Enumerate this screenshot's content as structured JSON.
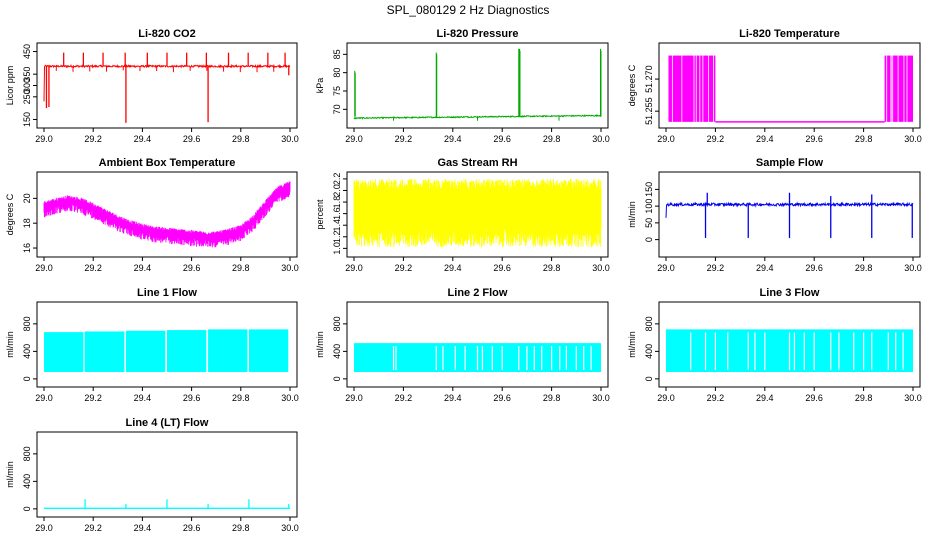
{
  "main_title": "SPL_080129  2 Hz Diagnostics",
  "chart_data": [
    {
      "type": "line",
      "title": "Li-820 CO2",
      "ylabel": "Licor ppm",
      "color": "#ff0000",
      "xlim": [
        29.0,
        30.0
      ],
      "ylim": [
        130,
        470
      ],
      "xticks": [
        29.0,
        29.2,
        29.4,
        29.6,
        29.8,
        30.0
      ],
      "xtick_labels": [
        "29.0",
        "29.2",
        "29.4",
        "29.6",
        "29.8",
        "30.0"
      ],
      "yticks": [
        150,
        250,
        300,
        350,
        450
      ],
      "ytick_labels": [
        "150",
        "250",
        "300",
        "350",
        "450"
      ],
      "series": {
        "baseline": 385,
        "noise": 4,
        "start_value": 230,
        "spikes": [
          {
            "x": 29.01,
            "y": 200
          },
          {
            "x": 29.02,
            "y": 205
          },
          {
            "x": 29.08,
            "y": 445
          },
          {
            "x": 29.16,
            "y": 445
          },
          {
            "x": 29.24,
            "y": 445
          },
          {
            "x": 29.33,
            "y": 445
          },
          {
            "x": 29.333,
            "y": 135
          },
          {
            "x": 29.42,
            "y": 445
          },
          {
            "x": 29.5,
            "y": 445
          },
          {
            "x": 29.58,
            "y": 445
          },
          {
            "x": 29.66,
            "y": 445
          },
          {
            "x": 29.667,
            "y": 138
          },
          {
            "x": 29.75,
            "y": 445
          },
          {
            "x": 29.83,
            "y": 445
          },
          {
            "x": 29.91,
            "y": 445
          },
          {
            "x": 29.98,
            "y": 445
          },
          {
            "x": 29.995,
            "y": 345
          }
        ]
      }
    },
    {
      "type": "line",
      "title": "Li-820 Pressure",
      "ylabel": "kPa",
      "color": "#00aa00",
      "xlim": [
        29.0,
        30.0
      ],
      "ylim": [
        66,
        87
      ],
      "xticks": [
        29.0,
        29.2,
        29.4,
        29.6,
        29.8,
        30.0
      ],
      "xtick_labels": [
        "29.0",
        "29.2",
        "29.4",
        "29.6",
        "29.8",
        "30.0"
      ],
      "yticks": [
        70,
        75,
        80,
        85
      ],
      "ytick_labels": [
        "70",
        "75",
        "80",
        "85"
      ],
      "series": {
        "baseline_start": 67.6,
        "baseline_end": 68.3,
        "noise": 0.15,
        "spikes": [
          {
            "x": 29.003,
            "y": 80.5
          },
          {
            "x": 29.333,
            "y": 85.5
          },
          {
            "x": 29.667,
            "y": 86.5
          },
          {
            "x": 29.67,
            "y": 86.5
          },
          {
            "x": 29.998,
            "y": 86.5
          }
        ]
      }
    },
    {
      "type": "line",
      "title": "Li-820 Temperature",
      "ylabel": "degrees C",
      "color": "#ff00ff",
      "xlim": [
        29.0,
        30.0
      ],
      "ylim": [
        51.249,
        51.285
      ],
      "xticks": [
        29.0,
        29.2,
        29.4,
        29.6,
        29.8,
        30.0
      ],
      "xtick_labels": [
        "29.0",
        "29.2",
        "29.4",
        "29.6",
        "29.8",
        "30.0"
      ],
      "yticks": [
        51.255,
        51.27
      ],
      "ytick_labels": [
        "51.255",
        "51.270"
      ],
      "series": {
        "low": 51.25,
        "high": 51.281,
        "oscillating_ranges": [
          [
            29.01,
            29.2
          ],
          [
            29.885,
            30.0
          ]
        ]
      }
    },
    {
      "type": "line",
      "title": "Ambient Box Temperature",
      "ylabel": "degrees C",
      "color": "#ff00ff",
      "xlim": [
        29.0,
        30.0
      ],
      "ylim": [
        15.6,
        21.8
      ],
      "xticks": [
        29.0,
        29.2,
        29.4,
        29.6,
        29.8,
        30.0
      ],
      "xtick_labels": [
        "29.0",
        "29.2",
        "29.4",
        "29.6",
        "29.8",
        "30.0"
      ],
      "yticks": [
        16,
        18,
        20
      ],
      "ytick_labels": [
        "16",
        "18",
        "20"
      ],
      "series": {
        "profile_x": [
          29.0,
          29.05,
          29.1,
          29.15,
          29.2,
          29.25,
          29.3,
          29.35,
          29.4,
          29.45,
          29.5,
          29.55,
          29.6,
          29.65,
          29.7,
          29.75,
          29.8,
          29.85,
          29.9,
          29.95,
          30.0
        ],
        "profile_y": [
          19.4,
          19.7,
          19.9,
          19.7,
          19.3,
          18.8,
          18.3,
          17.9,
          17.6,
          17.4,
          17.3,
          17.2,
          17.1,
          17.0,
          17.0,
          17.2,
          17.5,
          18.3,
          19.5,
          20.6,
          21.1
        ],
        "band_width": 1.2
      }
    },
    {
      "type": "line",
      "title": "Gas Stream RH",
      "ylabel": "percent",
      "color": "#ffff00",
      "xlim": [
        29.0,
        30.0
      ],
      "ylim": [
        0.92,
        2.25
      ],
      "xticks": [
        29.0,
        29.2,
        29.4,
        29.6,
        29.8,
        30.0
      ],
      "xtick_labels": [
        "29.0",
        "29.2",
        "29.4",
        "29.6",
        "29.8",
        "30.0"
      ],
      "yticks": [
        1.0,
        1.2,
        1.4,
        1.6,
        1.8,
        2.0,
        2.2
      ],
      "ytick_labels": [
        "1.0",
        "1.2",
        "1.4",
        "1.6",
        "1.8",
        "2.0",
        "2.2"
      ],
      "series": {
        "low": 1.02,
        "high": 2.2,
        "noise_floor": 1.35
      }
    },
    {
      "type": "line",
      "title": "Sample Flow",
      "ylabel": "ml/min",
      "color": "#0000ee",
      "xlim": [
        29.0,
        30.0
      ],
      "ylim": [
        -40,
        190
      ],
      "xticks": [
        29.0,
        29.2,
        29.4,
        29.6,
        29.8,
        30.0
      ],
      "xtick_labels": [
        "29.0",
        "29.2",
        "29.4",
        "29.6",
        "29.8",
        "30.0"
      ],
      "yticks": [
        0,
        50,
        100,
        150
      ],
      "ytick_labels": [
        "0",
        "50",
        "100",
        "150"
      ],
      "series": {
        "baseline": 105,
        "noise": 4,
        "start_value": 65,
        "spikes": [
          {
            "x": 29.16,
            "y": 5
          },
          {
            "x": 29.167,
            "y": 140
          },
          {
            "x": 29.333,
            "y": 5
          },
          {
            "x": 29.5,
            "y": 5
          },
          {
            "x": 29.5,
            "y": 140
          },
          {
            "x": 29.667,
            "y": 5
          },
          {
            "x": 29.667,
            "y": 130
          },
          {
            "x": 29.833,
            "y": 5
          },
          {
            "x": 29.833,
            "y": 135
          },
          {
            "x": 29.997,
            "y": 5
          }
        ]
      }
    },
    {
      "type": "area",
      "title": "Line 1 Flow",
      "ylabel": "ml/min",
      "color": "#00ffff",
      "xlim": [
        29.0,
        30.0
      ],
      "ylim": [
        -60,
        1060
      ],
      "xticks": [
        29.0,
        29.2,
        29.4,
        29.6,
        29.8,
        30.0
      ],
      "xtick_labels": [
        "29.0",
        "29.2",
        "29.4",
        "29.6",
        "29.8",
        "30.0"
      ],
      "yticks": [
        0,
        400,
        800
      ],
      "ytick_labels": [
        "0",
        "400",
        "800"
      ],
      "series": {
        "low": 100,
        "blocks": [
          {
            "x0": 29.0,
            "x1": 29.16,
            "top": 680
          },
          {
            "x0": 29.165,
            "x1": 29.327,
            "top": 690
          },
          {
            "x0": 29.333,
            "x1": 29.493,
            "top": 700
          },
          {
            "x0": 29.5,
            "x1": 29.66,
            "top": 710
          },
          {
            "x0": 29.667,
            "x1": 29.827,
            "top": 720
          },
          {
            "x0": 29.833,
            "x1": 29.993,
            "top": 720
          }
        ]
      }
    },
    {
      "type": "area",
      "title": "Line 2 Flow",
      "ylabel": "ml/min",
      "color": "#00ffff",
      "xlim": [
        29.0,
        30.0
      ],
      "ylim": [
        -60,
        1060
      ],
      "xticks": [
        29.0,
        29.2,
        29.4,
        29.6,
        29.8,
        30.0
      ],
      "xtick_labels": [
        "29.0",
        "29.2",
        "29.4",
        "29.6",
        "29.8",
        "30.0"
      ],
      "yticks": [
        0,
        400,
        800
      ],
      "ytick_labels": [
        "0",
        "400",
        "800"
      ],
      "series": {
        "low": 100,
        "top": 520,
        "gaps": [
          29.16,
          29.17,
          29.333,
          29.36,
          29.41,
          29.45,
          29.5,
          29.52,
          29.56,
          29.6,
          29.667,
          29.7,
          29.73,
          29.76,
          29.8,
          29.833,
          29.86,
          29.9,
          29.93,
          29.96
        ]
      }
    },
    {
      "type": "area",
      "title": "Line 3 Flow",
      "ylabel": "ml/min",
      "color": "#00ffff",
      "xlim": [
        29.0,
        30.0
      ],
      "ylim": [
        -60,
        1060
      ],
      "xticks": [
        29.0,
        29.2,
        29.4,
        29.6,
        29.8,
        30.0
      ],
      "xtick_labels": [
        "29.0",
        "29.2",
        "29.4",
        "29.6",
        "29.8",
        "30.0"
      ],
      "yticks": [
        0,
        400,
        800
      ],
      "ytick_labels": [
        "0",
        "400",
        "800"
      ],
      "series": {
        "low": 100,
        "top": 720,
        "gaps": [
          29.1,
          29.16,
          29.2,
          29.25,
          29.333,
          29.36,
          29.4,
          29.5,
          29.52,
          29.56,
          29.6,
          29.667,
          29.7,
          29.76,
          29.8,
          29.833,
          29.9,
          29.93,
          29.96
        ]
      }
    },
    {
      "type": "line",
      "title": "Line 4 (LT) Flow",
      "ylabel": "ml/min",
      "color": "#00ffff",
      "xlim": [
        29.0,
        30.0
      ],
      "ylim": [
        -60,
        1060
      ],
      "xticks": [
        29.0,
        29.2,
        29.4,
        29.6,
        29.8,
        30.0
      ],
      "xtick_labels": [
        "29.0",
        "29.2",
        "29.4",
        "29.6",
        "29.8",
        "30.0"
      ],
      "yticks": [
        0,
        400,
        800
      ],
      "ytick_labels": [
        "0",
        "400",
        "800"
      ],
      "series": {
        "baseline": 8,
        "spikes": [
          {
            "x": 29.167,
            "y": 140
          },
          {
            "x": 29.333,
            "y": 70
          },
          {
            "x": 29.5,
            "y": 140
          },
          {
            "x": 29.667,
            "y": 70
          },
          {
            "x": 29.833,
            "y": 140
          },
          {
            "x": 29.995,
            "y": 70
          }
        ]
      }
    }
  ]
}
